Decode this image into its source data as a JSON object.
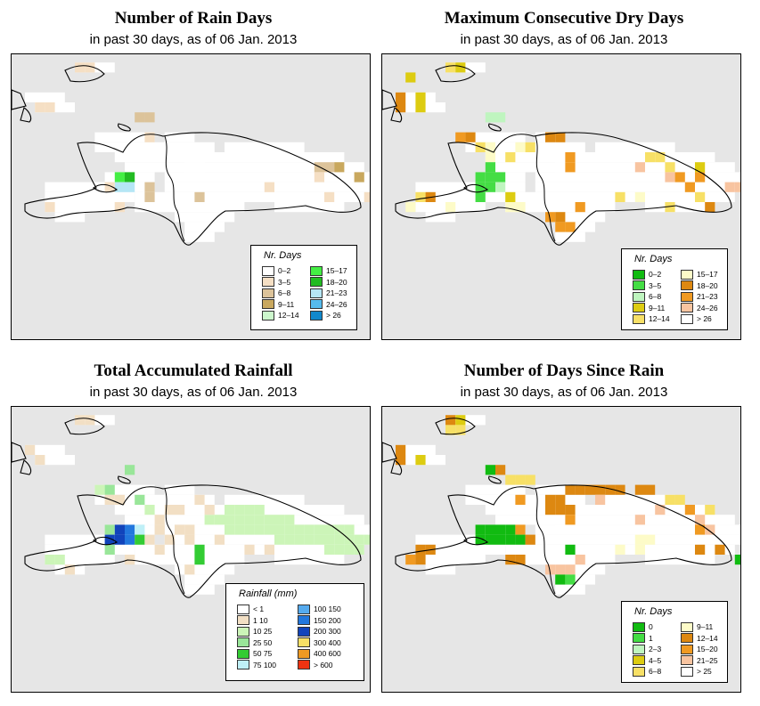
{
  "panels": [
    {
      "title": "Number of Rain Days",
      "subtitle": "in past 30 days, as of  06 Jan. 2013",
      "legend": {
        "title": "Nr. Days",
        "items": [
          {
            "label": "0–2",
            "color": "#ffffff"
          },
          {
            "label": "3–5",
            "color": "#f5dfc4"
          },
          {
            "label": "6–8",
            "color": "#dcc39a"
          },
          {
            "label": "9–11",
            "color": "#c9a85e"
          },
          {
            "label": "12–14",
            "color": "#ccf7cc"
          },
          {
            "label": "15–17",
            "color": "#44ee44"
          },
          {
            "label": "18–20",
            "color": "#22bb22"
          },
          {
            "label": "21–23",
            "color": "#b5e6f5"
          },
          {
            "label": "24–26",
            "color": "#55bbee"
          },
          {
            "label": "> 26",
            "color": "#1188cc"
          }
        ]
      }
    },
    {
      "title": "Maximum Consecutive Dry Days",
      "subtitle": "in past 30 days, as of  06 Jan. 2013",
      "legend": {
        "title": "Nr. Days",
        "items": [
          {
            "label": "0–2",
            "color": "#11bb11"
          },
          {
            "label": "3–5",
            "color": "#44dd44"
          },
          {
            "label": "6–8",
            "color": "#bff5bf"
          },
          {
            "label": "9–11",
            "color": "#ddcc11"
          },
          {
            "label": "12–14",
            "color": "#f7e066"
          },
          {
            "label": "15–17",
            "color": "#fdfbc8"
          },
          {
            "label": "18–20",
            "color": "#dd8811"
          },
          {
            "label": "21–23",
            "color": "#f09a22"
          },
          {
            "label": "24–26",
            "color": "#f8c4a0"
          },
          {
            "label": "> 26",
            "color": "#ffffff"
          }
        ]
      }
    },
    {
      "title": "Total Accumulated Rainfall",
      "subtitle": "in past 30 days, as of  06 Jan. 2013",
      "legend": {
        "title": "Rainfall (mm)",
        "items": [
          {
            "label": "< 1",
            "color": "#ffffff"
          },
          {
            "label": "1    10",
            "color": "#f2dfc4"
          },
          {
            "label": "10    25",
            "color": "#ccf5b8"
          },
          {
            "label": "25    50",
            "color": "#99e699"
          },
          {
            "label": "50    75",
            "color": "#33cc33"
          },
          {
            "label": "75   100",
            "color": "#bff0f7"
          },
          {
            "label": "100  150",
            "color": "#55aaee"
          },
          {
            "label": "150  200",
            "color": "#2277dd"
          },
          {
            "label": "200  300",
            "color": "#1144bb"
          },
          {
            "label": "300  400",
            "color": "#f7e066"
          },
          {
            "label": "400  600",
            "color": "#ee9922"
          },
          {
            "label": "> 600",
            "color": "#ee3311"
          }
        ]
      }
    },
    {
      "title": "Number of Days Since Rain",
      "subtitle": "in past 30 days, as of  06 Jan. 2013",
      "legend": {
        "title": "Nr. Days",
        "items": [
          {
            "label": "0",
            "color": "#11bb11"
          },
          {
            "label": "1",
            "color": "#44dd44"
          },
          {
            "label": "2–3",
            "color": "#bff5bf"
          },
          {
            "label": "4–5",
            "color": "#ddcc11"
          },
          {
            "label": "6–8",
            "color": "#f7e066"
          },
          {
            "label": "9–11",
            "color": "#fdfbc8"
          },
          {
            "label": "12–14",
            "color": "#dd8811"
          },
          {
            "label": "15–20",
            "color": "#f09a22"
          },
          {
            "label": "21–25",
            "color": "#f8c4a0"
          },
          {
            "label": "> 25",
            "color": "#ffffff"
          }
        ]
      }
    }
  ]
}
